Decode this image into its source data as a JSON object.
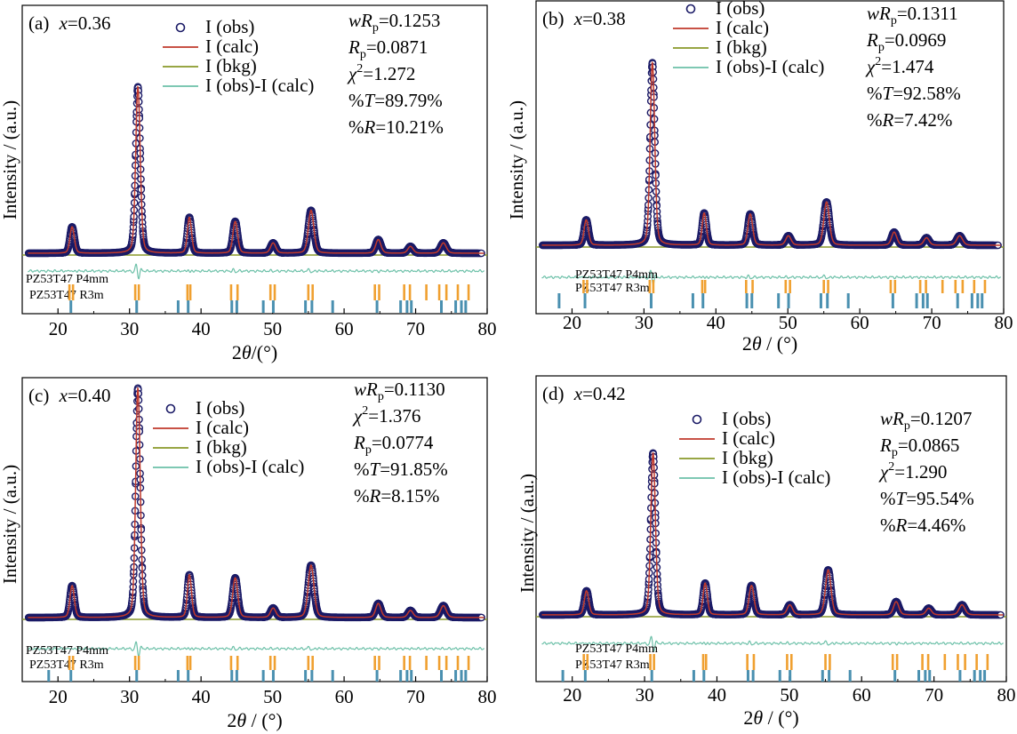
{
  "chart_data": [
    {
      "type": "scatter",
      "panel": "(a)",
      "composition": "x=0.36",
      "xlabel": "2θ/(°)",
      "ylabel": "Intensity / (a.u.)",
      "xlim": [
        15,
        80
      ],
      "xticks": [
        20,
        30,
        40,
        50,
        60,
        70,
        80
      ],
      "legend": [
        "I (obs)",
        "I (calc)",
        "I (bkg)",
        "I (obs)-I (calc)"
      ],
      "stats": [
        {
          "label": "wRp",
          "value": "0.1253"
        },
        {
          "label": "Rp",
          "value": "0.0871"
        },
        {
          "label": "χ2",
          "value": "1.272"
        },
        {
          "label": "%T",
          "value": "89.79%"
        },
        {
          "label": "%R",
          "value": "10.21%"
        }
      ],
      "phases": [
        "PZ53T47 P4mm",
        "PZ53T47 R3m"
      ],
      "background": 0.04,
      "peaks": [
        {
          "x": 21.9,
          "h": 0.16,
          "w": 0.32
        },
        {
          "x": 31.1,
          "h": 1.0,
          "w": 0.34
        },
        {
          "x": 38.3,
          "h": 0.22,
          "w": 0.3
        },
        {
          "x": 44.7,
          "h": 0.19,
          "w": 0.35
        },
        {
          "x": 50.0,
          "h": 0.06,
          "w": 0.4
        },
        {
          "x": 55.3,
          "h": 0.25,
          "w": 0.42
        },
        {
          "x": 64.7,
          "h": 0.08,
          "w": 0.4
        },
        {
          "x": 69.2,
          "h": 0.04,
          "w": 0.4
        },
        {
          "x": 73.8,
          "h": 0.06,
          "w": 0.45
        }
      ],
      "ticks_p4mm": [
        21.6,
        22.1,
        30.8,
        31.3,
        38.1,
        38.5,
        44.2,
        45.1,
        49.7,
        50.3,
        55.0,
        55.6,
        64.3,
        64.9,
        68.4,
        69.2,
        71.5,
        73.3,
        74.3,
        75.9,
        77.4
      ],
      "ticks_r3m": [
        21.8,
        31.0,
        36.8,
        38.2,
        44.3,
        45.0,
        48.7,
        50.1,
        54.6,
        55.5,
        58.4,
        64.6,
        67.9,
        68.8,
        69.4,
        73.6,
        75.6,
        76.4,
        77.0
      ]
    },
    {
      "type": "scatter",
      "panel": "(b)",
      "composition": "x=0.38",
      "xlabel": "2θ / (°)",
      "ylabel": "Intensity / (a.u.)",
      "xlim": [
        15,
        80
      ],
      "xticks": [
        20,
        30,
        40,
        50,
        60,
        70,
        80
      ],
      "legend": [
        "I (obs)",
        "I (calc)",
        "I (bkg)",
        "I (obs)-I (calc)"
      ],
      "stats": [
        {
          "label": "wRp",
          "value": "0.1311"
        },
        {
          "label": "Rp",
          "value": "0.0969"
        },
        {
          "label": "χ2",
          "value": "1.474"
        },
        {
          "label": "%T",
          "value": "92.58%"
        },
        {
          "label": "%R",
          "value": "7.42%"
        }
      ],
      "phases": [
        "PZ53T47 P4mm",
        "PZ53T47 R3m"
      ],
      "background": 0.04,
      "peaks": [
        {
          "x": 21.9,
          "h": 0.14,
          "w": 0.32
        },
        {
          "x": 31.1,
          "h": 1.0,
          "w": 0.34
        },
        {
          "x": 38.3,
          "h": 0.18,
          "w": 0.3
        },
        {
          "x": 44.7,
          "h": 0.17,
          "w": 0.35
        },
        {
          "x": 50.0,
          "h": 0.05,
          "w": 0.4
        },
        {
          "x": 55.3,
          "h": 0.23,
          "w": 0.42
        },
        {
          "x": 64.7,
          "h": 0.07,
          "w": 0.4
        },
        {
          "x": 69.2,
          "h": 0.04,
          "w": 0.4
        },
        {
          "x": 73.8,
          "h": 0.05,
          "w": 0.45
        }
      ],
      "ticks_p4mm": [
        21.6,
        22.1,
        30.8,
        31.3,
        38.1,
        38.5,
        44.2,
        45.1,
        49.7,
        50.3,
        55.0,
        55.6,
        64.3,
        64.9,
        68.4,
        69.2,
        71.5,
        73.3,
        74.3,
        75.9,
        77.4
      ],
      "ticks_r3m": [
        18.2,
        21.8,
        31.0,
        36.8,
        38.2,
        44.3,
        45.0,
        48.7,
        50.1,
        54.6,
        55.5,
        58.4,
        64.6,
        67.9,
        68.8,
        69.4,
        73.6,
        75.6,
        76.4,
        77.0
      ]
    },
    {
      "type": "scatter",
      "panel": "(c)",
      "composition": "x=0.40",
      "xlabel": "2θ / (°)",
      "ylabel": "Intensity / (a.u.)",
      "xlim": [
        15,
        80
      ],
      "xticks": [
        20,
        30,
        40,
        50,
        60,
        70,
        80
      ],
      "legend": [
        "I (obs)",
        "I (calc)",
        "I (bkg)",
        "I (obs)-I (calc)"
      ],
      "stats": [
        {
          "label": "wRp",
          "value": "0.1130"
        },
        {
          "label": "χ2",
          "value": "1.376"
        },
        {
          "label": "Rp",
          "value": "0.0774"
        },
        {
          "label": "%T",
          "value": "91.85%"
        },
        {
          "label": "%R",
          "value": "8.15%"
        }
      ],
      "phases": [
        "PZ53T47 P4mm",
        "PZ53T47 R3m"
      ],
      "background": 0.04,
      "peaks": [
        {
          "x": 21.9,
          "h": 0.14,
          "w": 0.32
        },
        {
          "x": 31.1,
          "h": 1.0,
          "w": 0.34
        },
        {
          "x": 38.3,
          "h": 0.19,
          "w": 0.3
        },
        {
          "x": 44.7,
          "h": 0.17,
          "w": 0.38
        },
        {
          "x": 50.0,
          "h": 0.04,
          "w": 0.4
        },
        {
          "x": 55.3,
          "h": 0.22,
          "w": 0.45
        },
        {
          "x": 64.7,
          "h": 0.06,
          "w": 0.4
        },
        {
          "x": 69.2,
          "h": 0.03,
          "w": 0.4
        },
        {
          "x": 73.8,
          "h": 0.05,
          "w": 0.45
        }
      ],
      "ticks_p4mm": [
        21.6,
        22.1,
        30.8,
        31.3,
        38.1,
        38.5,
        44.2,
        45.1,
        49.7,
        50.3,
        55.0,
        55.6,
        64.3,
        64.9,
        68.4,
        69.2,
        71.5,
        73.3,
        74.3,
        75.9,
        77.4
      ],
      "ticks_r3m": [
        18.7,
        21.8,
        31.0,
        36.8,
        38.2,
        44.3,
        45.0,
        48.7,
        50.1,
        54.6,
        55.5,
        58.4,
        64.6,
        67.9,
        68.8,
        69.4,
        73.6,
        75.6,
        76.4,
        77.0
      ]
    },
    {
      "type": "scatter",
      "panel": "(d)",
      "composition": "x=0.42",
      "xlabel": "2θ / (°)",
      "ylabel": "Intensity / (a.u.)",
      "xlim": [
        15,
        80
      ],
      "xticks": [
        20,
        30,
        40,
        50,
        60,
        70,
        80
      ],
      "legend": [
        "I (obs)",
        "I (calc)",
        "I (bkg)",
        "I (obs)-I (calc)"
      ],
      "stats": [
        {
          "label": "wRp",
          "value": "0.1207"
        },
        {
          "label": "Rp",
          "value": "0.0865"
        },
        {
          "label": "χ2",
          "value": "1.290"
        },
        {
          "label": "%T",
          "value": "95.54%"
        },
        {
          "label": "%R",
          "value": "4.46%"
        }
      ],
      "phases": [
        "PZ53T47 P4mm",
        "PZ53T47 R3m"
      ],
      "background": 0.04,
      "peaks": [
        {
          "x": 21.9,
          "h": 0.15,
          "w": 0.32
        },
        {
          "x": 31.1,
          "h": 1.0,
          "w": 0.34
        },
        {
          "x": 38.3,
          "h": 0.2,
          "w": 0.3
        },
        {
          "x": 44.7,
          "h": 0.18,
          "w": 0.36
        },
        {
          "x": 50.0,
          "h": 0.06,
          "w": 0.4
        },
        {
          "x": 55.3,
          "h": 0.27,
          "w": 0.42
        },
        {
          "x": 64.7,
          "h": 0.08,
          "w": 0.4
        },
        {
          "x": 69.2,
          "h": 0.04,
          "w": 0.4
        },
        {
          "x": 73.8,
          "h": 0.06,
          "w": 0.45
        }
      ],
      "ticks_p4mm": [
        21.6,
        22.1,
        30.8,
        31.3,
        38.1,
        38.5,
        44.2,
        45.1,
        49.7,
        50.3,
        55.0,
        55.6,
        64.3,
        64.9,
        68.4,
        69.2,
        71.5,
        73.3,
        74.3,
        75.9,
        77.4
      ],
      "ticks_r3m": [
        18.7,
        21.8,
        31.0,
        36.8,
        38.2,
        44.3,
        45.0,
        48.7,
        50.1,
        54.6,
        55.5,
        58.4,
        64.6,
        67.9,
        68.8,
        69.4,
        73.6,
        75.6,
        76.4,
        77.0
      ]
    }
  ],
  "colors": {
    "obs": "#1a1a66",
    "calc": "#c0392b",
    "bkg": "#8a9a2a",
    "diff": "#6cc0a8",
    "p4mm": "#f0a030",
    "r3m": "#4a90b0",
    "p4mm_text": "#d08020",
    "r3m_text": "#6cc0a8"
  }
}
